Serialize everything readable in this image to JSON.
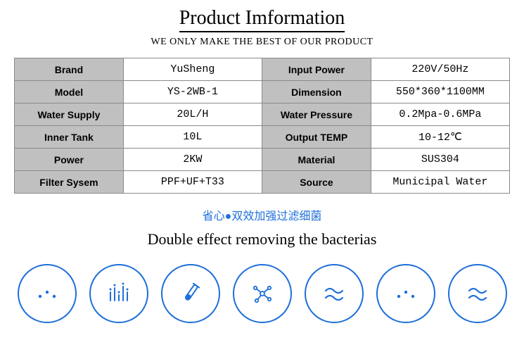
{
  "header": {
    "title": "Product Imformation",
    "subtitle": "WE ONLY MAKE THE BEST OF OUR PRODUCT"
  },
  "specs": {
    "rows": [
      {
        "l1": "Brand",
        "v1": "YuSheng",
        "l2": "Input Power",
        "v2": "220V/50Hz"
      },
      {
        "l1": "Model",
        "v1": "YS-2WB-1",
        "l2": "Dimension",
        "v2": "550*360*1100MM"
      },
      {
        "l1": "Water Supply",
        "v1": "20L/H",
        "l2": "Water Pressure",
        "v2": "0.2Mpa-0.6MPa"
      },
      {
        "l1": "Inner Tank",
        "v1": "10L",
        "l2": "Output TEMP",
        "v2": "10-12℃"
      },
      {
        "l1": "Power",
        "v1": "2KW",
        "l2": "Material",
        "v2": "SUS304"
      },
      {
        "l1": "Filter Sysem",
        "v1": "PPF+UF+T33",
        "l2": "Source",
        "v2": "Municipal Water"
      }
    ]
  },
  "section2": {
    "cn": "省心●双效加强过滤细菌",
    "en": "Double effect removing the bacterias"
  },
  "icons": [
    "dots",
    "bars",
    "tube",
    "molecule",
    "wave",
    "dots",
    "wave"
  ],
  "colors": {
    "accent": "#1e6fd9",
    "header_bg": "#c0c0c0",
    "border": "#8a8a8a"
  }
}
